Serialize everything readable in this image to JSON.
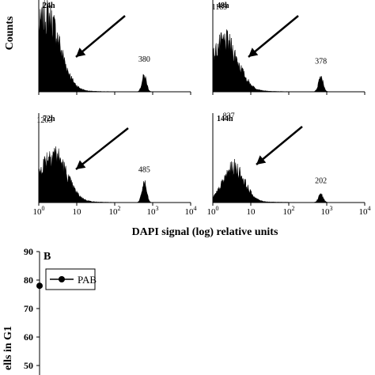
{
  "chart_data": [
    {
      "type": "area",
      "subtype": "flow-cytometry-histograms",
      "ylabel": "Counts",
      "xlabel": "DAPI signal (log) relative units",
      "xscale": "log",
      "xlim": [
        1,
        10000
      ],
      "xticks": [
        {
          "base": "10",
          "exp": "0"
        },
        {
          "base": "10",
          "exp": ""
        },
        {
          "base": "10",
          "exp": "2"
        },
        {
          "base": "10",
          "exp": "3"
        },
        {
          "base": "10",
          "exp": "4"
        }
      ],
      "panels": [
        {
          "label": "24h",
          "peaks": [
            {
              "x": 1.6,
              "counts": 1801,
              "label": "1801"
            },
            {
              "x": 600,
              "counts": 380,
              "label": "380"
            }
          ]
        },
        {
          "label": "48h",
          "peaks": [
            {
              "x": 2.0,
              "counts": 1189,
              "label": "1189"
            },
            {
              "x": 700,
              "counts": 378,
              "label": "378"
            }
          ]
        },
        {
          "label": "72h",
          "peaks": [
            {
              "x": 2.3,
              "counts": 1203,
              "label": "1203"
            },
            {
              "x": 600,
              "counts": 485,
              "label": "485"
            }
          ]
        },
        {
          "label": "144h",
          "peaks": [
            {
              "x": 3.5,
              "counts": 837,
              "label": "837"
            },
            {
              "x": 700,
              "counts": 202,
              "label": "202"
            }
          ]
        }
      ]
    },
    {
      "type": "line",
      "panel_label": "B",
      "ylabel_visible": "ells in G1",
      "ylim": [
        50,
        90
      ],
      "yticks": [
        "90",
        "80",
        "70",
        "60",
        "50"
      ],
      "series": [
        {
          "name": "PAB",
          "values": [
            78
          ]
        }
      ],
      "legend": "top-left",
      "cropped": true
    }
  ]
}
